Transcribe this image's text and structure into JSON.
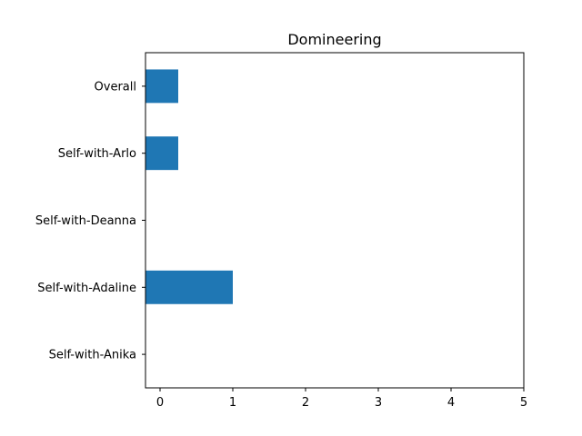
{
  "chart_data": {
    "type": "bar",
    "orientation": "horizontal",
    "title": "Domineering",
    "xlabel": "",
    "ylabel": "",
    "categories": [
      "Overall",
      "Self-with-Arlo",
      "Self-with-Deanna",
      "Self-with-Adaline",
      "Self-with-Anika"
    ],
    "values": [
      0.25,
      0.25,
      0,
      1.0,
      0
    ],
    "xlim": [
      -0.2,
      5
    ],
    "xticks": [
      0,
      1,
      2,
      3,
      4,
      5
    ],
    "xtick_labels": [
      "0",
      "1",
      "2",
      "3",
      "4",
      "5"
    ],
    "grid": false,
    "bar_color": "#1f77b4"
  }
}
